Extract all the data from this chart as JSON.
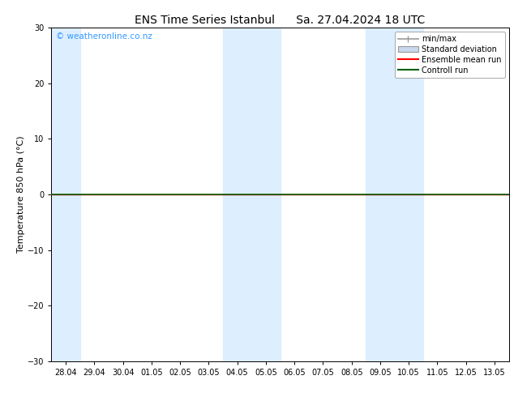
{
  "title_left": "ENS Time Series Istanbul",
  "title_right": "Sa. 27.04.2024 18 UTC",
  "ylabel": "Temperature 850 hPa (°C)",
  "watermark": "© weatheronline.co.nz",
  "watermark_color": "#3399ff",
  "ylim": [
    -30,
    30
  ],
  "yticks": [
    -30,
    -20,
    -10,
    0,
    10,
    20,
    30
  ],
  "xtick_labels": [
    "28.04",
    "29.04",
    "30.04",
    "01.05",
    "02.05",
    "03.05",
    "04.05",
    "05.05",
    "06.05",
    "07.05",
    "08.05",
    "09.05",
    "10.05",
    "11.05",
    "12.05",
    "13.05"
  ],
  "background_color": "#ffffff",
  "plot_bg_color": "#ffffff",
  "ensemble_mean_color": "#ff0000",
  "control_run_color": "#006000",
  "minmax_color": "#999999",
  "std_dev_color": "#c8d8ee",
  "std_dev_edge_color": "#999999",
  "shaded_color": "#ddeeff",
  "tick_label_fontsize": 7,
  "axis_label_fontsize": 8,
  "title_fontsize": 10,
  "legend_fontsize": 7,
  "shaded_intervals": [
    [
      0,
      1
    ],
    [
      6,
      8
    ],
    [
      11,
      13
    ]
  ],
  "legend_items": [
    "min/max",
    "Standard deviation",
    "Ensemble mean run",
    "Controll run"
  ]
}
